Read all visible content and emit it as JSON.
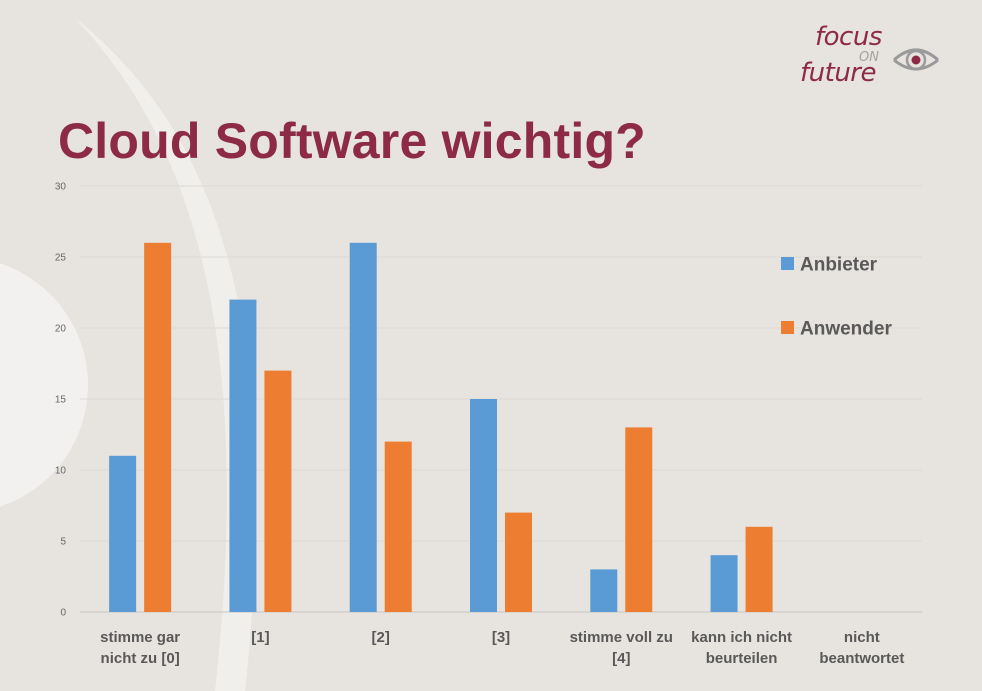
{
  "header": {
    "title": "Cloud Software wichtig?",
    "logo": {
      "word1": "focus",
      "word2": "ON",
      "word3": "future",
      "brand_color": "#8c2b43"
    }
  },
  "chart_data": {
    "type": "bar",
    "categories": [
      [
        "stimme gar",
        "nicht zu [0]"
      ],
      [
        "[1]"
      ],
      [
        "[2]"
      ],
      [
        "[3]"
      ],
      [
        "stimme voll zu",
        "[4]"
      ],
      [
        "kann ich nicht",
        "beurteilen"
      ],
      [
        "nicht",
        "beantwortet"
      ]
    ],
    "series": [
      {
        "name": "Anbieter",
        "color": "#5b9bd5",
        "values": [
          11,
          22,
          26,
          15,
          3,
          4,
          0
        ]
      },
      {
        "name": "Anwender",
        "color": "#ed7d31",
        "values": [
          26,
          17,
          12,
          7,
          13,
          6,
          0
        ]
      }
    ],
    "yticks": [
      0,
      5,
      10,
      15,
      20,
      25,
      30
    ],
    "ylim": [
      0,
      30
    ],
    "grid": true,
    "legend_position": "right",
    "title": "",
    "xlabel": "",
    "ylabel": ""
  }
}
